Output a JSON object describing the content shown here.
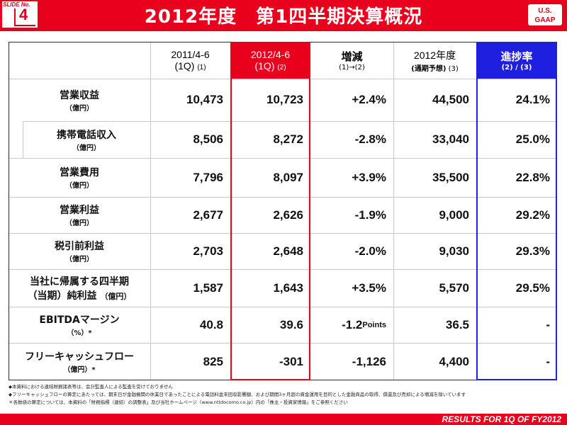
{
  "header": {
    "slide_label": "SLIDE No.",
    "slide_number": "4",
    "title": "2012年度　第1四半期決算概況",
    "gaap_line1": "U.S.",
    "gaap_line2": "GAAP"
  },
  "columns": [
    {
      "line1": "2011/4-6",
      "line2": "(1Q)",
      "note": "(1)"
    },
    {
      "line1": "2012/4-6",
      "line2": "(1Q)",
      "note": "(2)"
    },
    {
      "line1": "増減",
      "line2": "(1)→(2)"
    },
    {
      "line1": "2012年度",
      "line2": "(通期予想)",
      "note": "(3)"
    },
    {
      "line1": "進捗率",
      "line2": "(2) / (3)"
    }
  ],
  "rows": [
    {
      "label": "営業収益",
      "unit": "（億円）",
      "values": [
        "10,473",
        "10,723",
        "+2.4%",
        "44,500",
        "24.1%"
      ]
    },
    {
      "label": "携帯電話収入",
      "unit": "（億円）",
      "values": [
        "8,506",
        "8,272",
        "-2.8%",
        "33,040",
        "25.0%"
      ]
    },
    {
      "label": "営業費用",
      "unit": "（億円）",
      "values": [
        "7,796",
        "8,097",
        "+3.9%",
        "35,500",
        "22.8%"
      ]
    },
    {
      "label": "営業利益",
      "unit": "（億円）",
      "values": [
        "2,677",
        "2,626",
        "-1.9%",
        "9,000",
        "29.2%"
      ]
    },
    {
      "label": "税引前利益",
      "unit": "（億円）",
      "values": [
        "2,703",
        "2,648",
        "-2.0%",
        "9,030",
        "29.3%"
      ]
    },
    {
      "label": "当社に帰属する四半期",
      "unit": "（当期）純利益",
      "unit2": "（億円）",
      "values": [
        "1,587",
        "1,643",
        "+3.5%",
        "5,570",
        "29.5%"
      ]
    },
    {
      "label": "EBITDAマージン",
      "unit": "（%）*",
      "values": [
        "40.8",
        "39.6",
        "-1.2",
        "36.5",
        "-"
      ],
      "points_suffix": "Points"
    },
    {
      "label": "フリーキャッシュフロー",
      "unit": "（億円）*",
      "values": [
        "825",
        "-301",
        "-1,126",
        "4,400",
        "-"
      ]
    }
  ],
  "footnotes": [
    "◆本資料における連結財務諸表等は、会計監査人による監査を受けておりません",
    "◆フリーキャッシュフローの算定にあたっては、期末日が金融機関の休業日であったことによる電話料金未回収影響額、および期間3ヶ月超の資金運用を目的とした金融商品の取得、償還及び売却による増減を除いています",
    "＊各数値の算定については、本資料の「財務指標（連結）の調整表」及び当社ホームページ（www.nttdocomo.co.jp）内の「株主・投資家情報」をご参照ください"
  ],
  "footer": {
    "text": "RESULTS FOR 1Q OF FY2012"
  }
}
